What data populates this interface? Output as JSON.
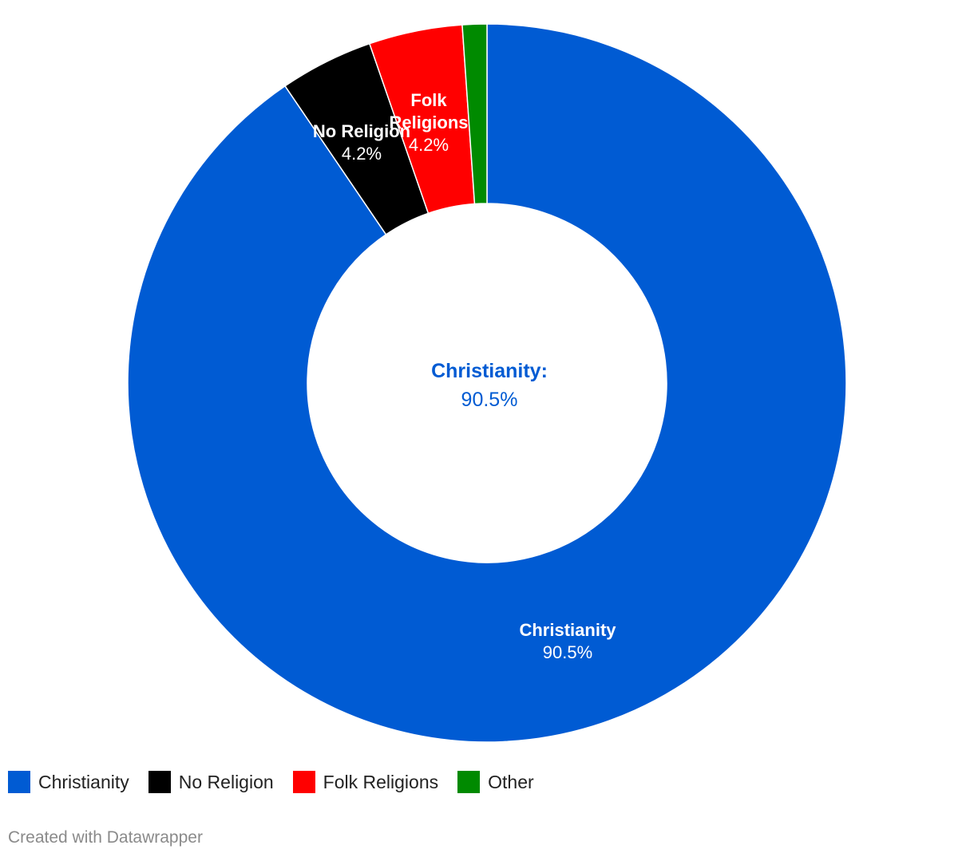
{
  "chart_data": {
    "type": "pie",
    "donut": true,
    "categories": [
      "Christianity",
      "No Religion",
      "Folk Religions",
      "Other"
    ],
    "values": [
      90.5,
      4.2,
      4.2,
      1.1
    ],
    "colors": [
      "#005bd3",
      "#000000",
      "#ff0000",
      "#008a00"
    ],
    "slice_labels": [
      {
        "name": "Christianity",
        "value": "90.5%"
      },
      {
        "name": "No Religion",
        "value": "4.2%"
      },
      {
        "name": "Folk Religions",
        "value": "4.2%"
      },
      {
        "name": "Other",
        "value": ""
      }
    ],
    "center_label": {
      "name": "Christianity:",
      "value": "90.5%",
      "color": "#005bd3"
    },
    "legend_placement": "bottom-left"
  },
  "legend": [
    {
      "label": "Christianity",
      "color": "#005bd3"
    },
    {
      "label": "No Religion",
      "color": "#000000"
    },
    {
      "label": "Folk Religions",
      "color": "#ff0000"
    },
    {
      "label": "Other",
      "color": "#008a00"
    }
  ],
  "credit": "Created with Datawrapper"
}
